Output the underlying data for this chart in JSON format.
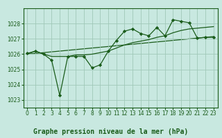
{
  "title": "Graphe pression niveau de la mer (hPa)",
  "background_color": "#c8e8e0",
  "plot_bg_color": "#c8e8e0",
  "grid_color": "#a0c8b8",
  "line_color": "#1a5c1a",
  "marker_color": "#1a5c1a",
  "xlim": [
    -0.5,
    23.5
  ],
  "ylim": [
    1022.5,
    1029.0
  ],
  "yticks": [
    1023,
    1024,
    1025,
    1026,
    1027,
    1028
  ],
  "xticks": [
    0,
    1,
    2,
    3,
    4,
    5,
    6,
    7,
    8,
    9,
    10,
    11,
    12,
    13,
    14,
    15,
    16,
    17,
    18,
    19,
    20,
    21,
    22,
    23
  ],
  "series1_x": [
    0,
    1,
    2,
    3,
    4,
    5,
    6,
    7,
    8,
    9,
    10,
    11,
    12,
    13,
    14,
    15,
    16,
    17,
    18,
    19,
    20,
    21,
    22,
    23
  ],
  "series1_y": [
    1026.05,
    1026.2,
    1026.0,
    1025.6,
    1023.3,
    1025.85,
    1025.85,
    1025.85,
    1025.1,
    1025.3,
    1026.2,
    1026.9,
    1027.5,
    1027.65,
    1027.35,
    1027.2,
    1027.75,
    1027.2,
    1028.25,
    1028.15,
    1028.05,
    1027.05,
    1027.1,
    1027.1
  ],
  "series2_x": [
    0,
    1,
    2,
    3,
    4,
    5,
    6,
    7,
    8,
    9,
    10,
    11,
    12,
    13,
    14,
    15,
    16,
    17,
    18,
    19,
    20,
    21,
    22,
    23
  ],
  "series2_y": [
    1026.0,
    1026.2,
    1026.0,
    1025.85,
    1025.85,
    1025.85,
    1025.95,
    1025.95,
    1026.0,
    1026.1,
    1026.2,
    1026.4,
    1026.6,
    1026.75,
    1026.85,
    1026.95,
    1027.1,
    1027.2,
    1027.4,
    1027.55,
    1027.65,
    1027.7,
    1027.75,
    1027.8
  ],
  "series3_x": [
    0,
    23
  ],
  "series3_y": [
    1026.0,
    1027.15
  ],
  "title_fontsize": 7,
  "tick_fontsize": 5.5
}
